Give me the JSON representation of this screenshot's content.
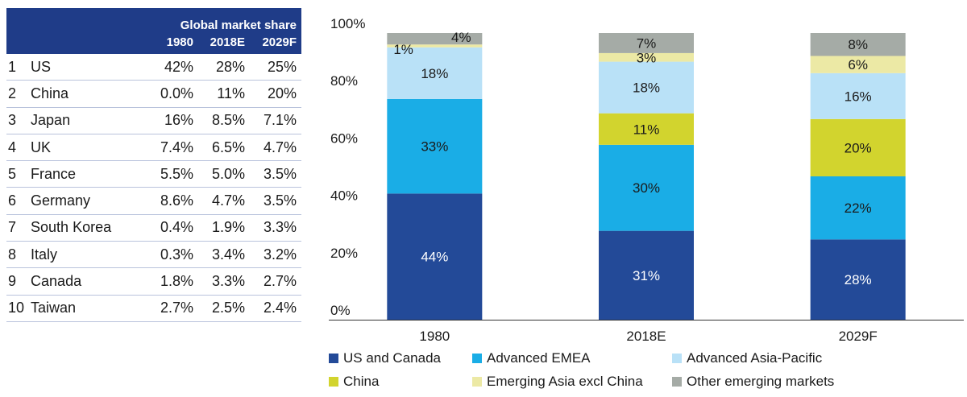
{
  "table": {
    "group_header": "Global market share",
    "columns": [
      "1980",
      "2018E",
      "2029F"
    ],
    "rows": [
      {
        "rank": "1",
        "country": "US",
        "values": [
          "42%",
          "28%",
          "25%"
        ]
      },
      {
        "rank": "2",
        "country": "China",
        "values": [
          "0.0%",
          "11%",
          "20%"
        ]
      },
      {
        "rank": "3",
        "country": "Japan",
        "values": [
          "16%",
          "8.5%",
          "7.1%"
        ]
      },
      {
        "rank": "4",
        "country": "UK",
        "values": [
          "7.4%",
          "6.5%",
          "4.7%"
        ]
      },
      {
        "rank": "5",
        "country": "France",
        "values": [
          "5.5%",
          "5.0%",
          "3.5%"
        ]
      },
      {
        "rank": "6",
        "country": "Germany",
        "values": [
          "8.6%",
          "4.7%",
          "3.5%"
        ]
      },
      {
        "rank": "7",
        "country": "South Korea",
        "values": [
          "0.4%",
          "1.9%",
          "3.3%"
        ]
      },
      {
        "rank": "8",
        "country": "Italy",
        "values": [
          "0.3%",
          "3.4%",
          "3.2%"
        ]
      },
      {
        "rank": "9",
        "country": "Canada",
        "values": [
          "1.8%",
          "3.3%",
          "2.7%"
        ]
      },
      {
        "rank": "10",
        "country": "Taiwan",
        "values": [
          "2.7%",
          "2.5%",
          "2.4%"
        ]
      }
    ]
  },
  "chart_data": {
    "type": "bar",
    "stacked": true,
    "categories": [
      "1980",
      "2018E",
      "2029F"
    ],
    "ylim": [
      0,
      100
    ],
    "yticks": [
      "0%",
      "20%",
      "40%",
      "60%",
      "80%",
      "100%"
    ],
    "legend_position": "bottom",
    "series": [
      {
        "name": "US and Canada",
        "color": "#234a98",
        "label_color": "#ffffff",
        "values": [
          44,
          31,
          28
        ],
        "labels": [
          "44%",
          "31%",
          "28%"
        ]
      },
      {
        "name": "Advanced EMEA",
        "color": "#1aade6",
        "label_color": "#1a1a1a",
        "values": [
          33,
          30,
          22
        ],
        "labels": [
          "33%",
          "30%",
          "22%"
        ]
      },
      {
        "name": "China",
        "color": "#d2d42e",
        "label_color": "#1a1a1a",
        "values": [
          0,
          11,
          20
        ],
        "labels": [
          "",
          "11%",
          "20%"
        ]
      },
      {
        "name": "Advanced Asia-Pacific",
        "color": "#b9e1f7",
        "label_color": "#1a1a1a",
        "values": [
          18,
          18,
          16
        ],
        "labels": [
          "18%",
          "18%",
          "16%"
        ]
      },
      {
        "name": "Emerging Asia excl China",
        "color": "#ece9a5",
        "label_color": "#1a1a1a",
        "values": [
          1,
          3,
          6
        ],
        "labels": [
          "1%",
          "3%",
          "6%"
        ]
      },
      {
        "name": "Other emerging markets",
        "color": "#a5aba6",
        "label_color": "#1a1a1a",
        "values": [
          4,
          7,
          8
        ],
        "labels": [
          "4%",
          "7%",
          "8%"
        ]
      }
    ],
    "legend_order": [
      "US and Canada",
      "Advanced EMEA",
      "Advanced Asia-Pacific",
      "China",
      "Emerging Asia excl China",
      "Other emerging markets"
    ]
  }
}
